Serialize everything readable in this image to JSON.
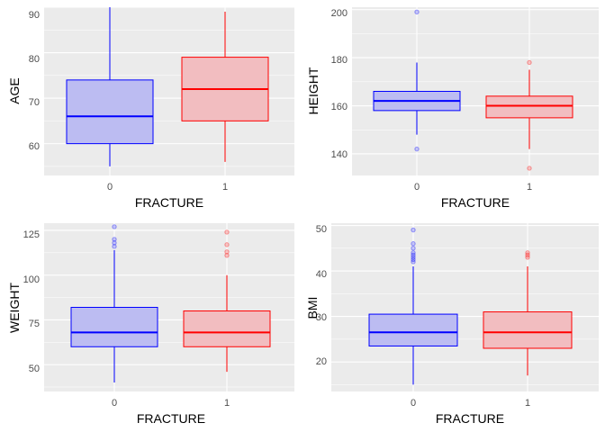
{
  "chart_data": [
    {
      "type": "boxplot",
      "xlabel": "FRACTURE",
      "ylabel": "AGE",
      "categories": [
        "0",
        "1"
      ],
      "ylim": [
        53,
        90
      ],
      "yticks": [
        60,
        70,
        80,
        90
      ],
      "boxes": [
        {
          "category": "0",
          "min": 55,
          "q1": 60,
          "median": 66,
          "q3": 74,
          "max": 90,
          "outliers": []
        },
        {
          "category": "1",
          "min": 56,
          "q1": 65,
          "median": 72,
          "q3": 79,
          "max": 89,
          "outliers": []
        }
      ]
    },
    {
      "type": "boxplot",
      "xlabel": "FRACTURE",
      "ylabel": "HEIGHT",
      "categories": [
        "0",
        "1"
      ],
      "ylim": [
        131,
        201
      ],
      "yticks": [
        140,
        160,
        180,
        200
      ],
      "boxes": [
        {
          "category": "0",
          "min": 148,
          "q1": 158,
          "median": 162,
          "q3": 166,
          "max": 178,
          "outliers": [
            142,
            199
          ]
        },
        {
          "category": "1",
          "min": 142,
          "q1": 155,
          "median": 160,
          "q3": 164,
          "max": 175,
          "outliers": [
            134,
            178
          ]
        }
      ]
    },
    {
      "type": "boxplot",
      "xlabel": "FRACTURE",
      "ylabel": "WEIGHT",
      "categories": [
        "0",
        "1"
      ],
      "ylim": [
        35,
        129
      ],
      "yticks": [
        50,
        75,
        100,
        125
      ],
      "boxes": [
        {
          "category": "0",
          "min": 40,
          "q1": 60,
          "median": 68,
          "q3": 82,
          "max": 114,
          "outliers": [
            116,
            118,
            120,
            127
          ]
        },
        {
          "category": "1",
          "min": 46,
          "q1": 60,
          "median": 68,
          "q3": 80,
          "max": 100,
          "outliers": [
            111,
            113,
            117,
            124
          ]
        }
      ]
    },
    {
      "type": "boxplot",
      "xlabel": "FRACTURE",
      "ylabel": "BMI",
      "categories": [
        "0",
        "1"
      ],
      "ylim": [
        13.5,
        50.5
      ],
      "yticks": [
        20,
        30,
        40,
        50
      ],
      "boxes": [
        {
          "category": "0",
          "min": 15,
          "q1": 23.5,
          "median": 26.5,
          "q3": 30.5,
          "max": 41,
          "outliers": [
            42,
            42.5,
            43,
            43.5,
            44,
            45,
            46,
            49
          ]
        },
        {
          "category": "1",
          "min": 17,
          "q1": 23,
          "median": 26.5,
          "q3": 31,
          "max": 41,
          "outliers": [
            43,
            43.5,
            44
          ]
        }
      ]
    }
  ],
  "colors": {
    "panel_bg": "#EBEBEB",
    "grid": "#FFFFFF",
    "group_0_line": "#0000FF",
    "group_0_fill": "#BCBCF2",
    "group_1_line": "#FF0000",
    "group_1_fill": "#F2BDC0"
  }
}
